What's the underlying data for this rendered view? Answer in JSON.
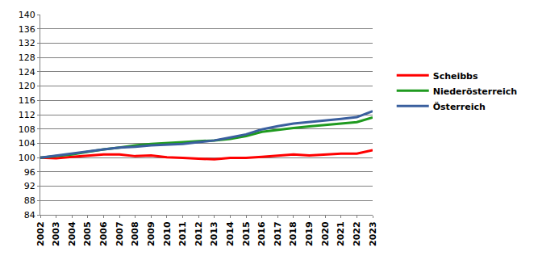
{
  "chart_data": {
    "type": "line",
    "categories": [
      "2002",
      "2003",
      "2004",
      "2005",
      "2006",
      "2007",
      "2008",
      "2009",
      "2010",
      "2011",
      "2012",
      "2013",
      "2014",
      "2015",
      "2016",
      "2017",
      "2018",
      "2019",
      "2020",
      "2021",
      "2022",
      "2023"
    ],
    "series": [
      {
        "name": "Scheibbs",
        "color": "#ff0000",
        "line_style": "solid",
        "values": [
          100,
          99.8,
          100.2,
          100.6,
          100.9,
          100.9,
          100.4,
          100.6,
          100.1,
          99.9,
          99.7,
          99.5,
          99.9,
          99.9,
          100.2,
          100.6,
          100.9,
          100.6,
          100.8,
          101.1,
          101.1,
          102.1
        ]
      },
      {
        "name": "Niederösterreich",
        "color": "#1f9a1f",
        "line_style": "solid",
        "values": [
          100,
          100.4,
          100.9,
          101.6,
          102.3,
          102.8,
          103.4,
          103.8,
          104.0,
          104.3,
          104.6,
          104.8,
          105.2,
          106.0,
          107.2,
          107.8,
          108.3,
          108.7,
          109.1,
          109.5,
          109.9,
          111.2
        ]
      },
      {
        "name": "Österreich",
        "color": "#3a5f9e",
        "line_style": "solid",
        "values": [
          100,
          100.6,
          101.1,
          101.7,
          102.3,
          102.8,
          103.0,
          103.4,
          103.6,
          103.8,
          104.3,
          104.8,
          105.6,
          106.5,
          107.9,
          108.8,
          109.5,
          109.9,
          110.4,
          110.8,
          111.3,
          113.0
        ]
      }
    ],
    "ylim": [
      84,
      140
    ],
    "yticks": [
      84,
      88,
      92,
      96,
      100,
      104,
      108,
      112,
      116,
      120,
      124,
      128,
      132,
      136,
      140
    ],
    "grid": true,
    "legend": "right"
  }
}
